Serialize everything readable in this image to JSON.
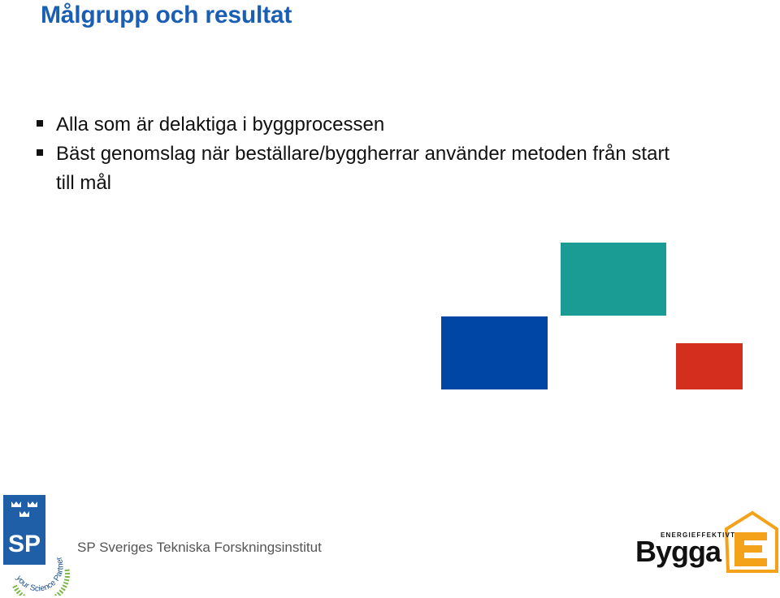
{
  "slide": {
    "title": "Målgrupp och resultat",
    "bullets": [
      "Alla som är delaktiga i byggprocessen",
      "Bäst genomslag när beställare/byggherrar använder metoden från start till mål"
    ]
  },
  "shapes": {
    "teal": "#1a9b93",
    "blue": "#0047a5",
    "red": "#d42e1f"
  },
  "footer": {
    "sp_logo_text": "SP",
    "partner_text": "your Science Partner",
    "institute_name": "SP Sveriges Tekniska Forskningsinstitut",
    "bygga_tagline": "ENERGIEFFEKTIVT",
    "bygga_wordmark": "ByggaE",
    "sp_blue": "#1f5fa8",
    "partner_green": "#7ab648",
    "bygga_orange": "#f5a21b"
  }
}
